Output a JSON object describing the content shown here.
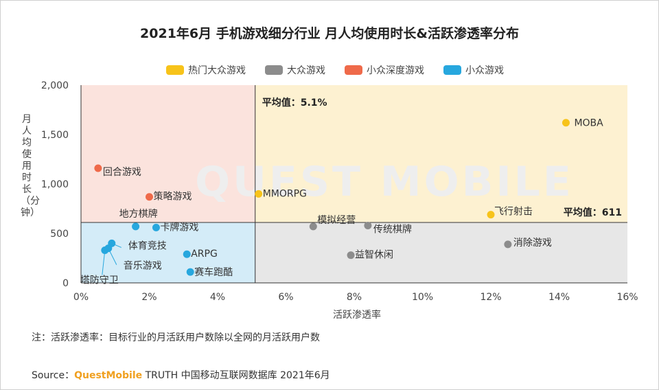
{
  "title": "2021年6月 手机游戏细分行业 月人均使用时长&活跃渗透率分布",
  "legend": [
    {
      "label": "热门大众游戏",
      "color": "#F7C31A"
    },
    {
      "label": "大众游戏",
      "color": "#8C8C8C"
    },
    {
      "label": "小众深度游戏",
      "color": "#EF6A4A"
    },
    {
      "label": "小众游戏",
      "color": "#27A7DE"
    }
  ],
  "ylabel_text": "月人均使用时长（分钟）",
  "xlabel_text": "活跃渗透率",
  "note": "注：活跃渗透率：目标行业的月活跃用户数除以全网的月活跃用户数",
  "source": {
    "prefix": "Source：",
    "brand": "QuestMobile",
    "suffix": " TRUTH 中国移动互联网数据库 2021年6月"
  },
  "watermark": "QUEST MOBILE",
  "chart_data": {
    "type": "scatter",
    "title": "2021年6月 手机游戏细分行业 月人均使用时长&活跃渗透率分布",
    "xlabel": "活跃渗透率",
    "ylabel": "月人均使用时长（分钟）",
    "xlim": [
      0,
      16
    ],
    "ylim": [
      0,
      2000
    ],
    "x_ticks": [
      "0%",
      "2%",
      "4%",
      "6%",
      "8%",
      "10%",
      "12%",
      "14%",
      "16%"
    ],
    "y_ticks": [
      "0",
      "500",
      "1,000",
      "1,500",
      "2,000"
    ],
    "x_avg": 5.1,
    "y_avg": 611,
    "x_avg_label": "平均值：5.1%",
    "y_avg_label": "平均值：611",
    "quadrant_colors": {
      "top_left": "#FBE3DD",
      "top_right": "#FDF1D1",
      "bottom_left": "#D4ECF8",
      "bottom_right": "#E7E7E7"
    },
    "series": [
      {
        "name": "热门大众游戏",
        "color": "#F7C31A",
        "points": [
          {
            "label": "MOBA",
            "x": 14.2,
            "y": 1620
          },
          {
            "label": "MMORPG",
            "x": 5.2,
            "y": 900
          },
          {
            "label": "飞行射击",
            "x": 12.0,
            "y": 690
          }
        ]
      },
      {
        "name": "大众游戏",
        "color": "#8C8C8C",
        "points": [
          {
            "label": "模拟经营",
            "x": 6.8,
            "y": 570
          },
          {
            "label": "传统棋牌",
            "x": 8.4,
            "y": 580
          },
          {
            "label": "益智休闲",
            "x": 7.9,
            "y": 280
          },
          {
            "label": "消除游戏",
            "x": 12.5,
            "y": 390
          }
        ]
      },
      {
        "name": "小众深度游戏",
        "color": "#EF6A4A",
        "points": [
          {
            "label": "回合游戏",
            "x": 0.5,
            "y": 1160
          },
          {
            "label": "策略游戏",
            "x": 2.0,
            "y": 870
          }
        ]
      },
      {
        "name": "小众游戏",
        "color": "#27A7DE",
        "points": [
          {
            "label": "地方棋牌",
            "x": 1.6,
            "y": 570
          },
          {
            "label": "卡牌游戏",
            "x": 2.2,
            "y": 560
          },
          {
            "label": "体育竞技",
            "x": 0.9,
            "y": 400
          },
          {
            "label": "音乐游戏",
            "x": 0.8,
            "y": 350
          },
          {
            "label": "塔防守卫",
            "x": 0.7,
            "y": 330
          },
          {
            "label": "ARPG",
            "x": 3.1,
            "y": 290
          },
          {
            "label": "赛车跑酷",
            "x": 3.2,
            "y": 110
          }
        ]
      }
    ]
  }
}
